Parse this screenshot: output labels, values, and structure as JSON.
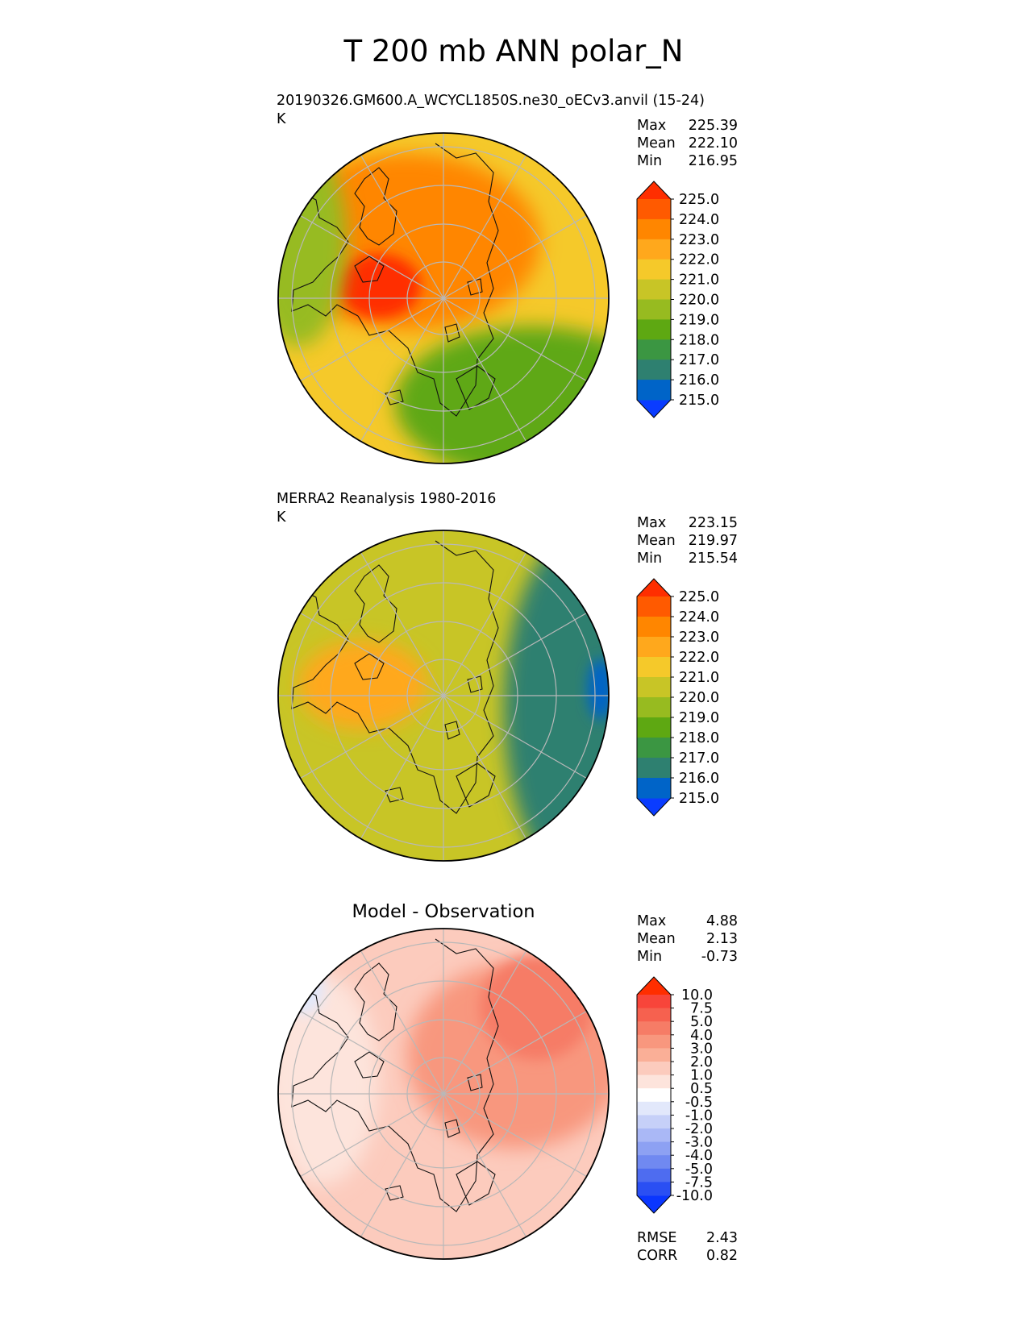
{
  "figure": {
    "title": "T 200 mb ANN polar_N"
  },
  "chart_data": [
    {
      "type": "heatmap",
      "projection": "north-polar-stereographic",
      "title": "20190326.GM600.A_WCYCL1850S.ne30_oECv3.anvil (15-24)",
      "units": "K",
      "stats": [
        {
          "label": "Max",
          "value": "225.39"
        },
        {
          "label": "Mean",
          "value": "222.10"
        },
        {
          "label": "Min",
          "value": "216.95"
        }
      ],
      "colorbar": {
        "levels": [
          "225.0",
          "224.0",
          "223.0",
          "222.0",
          "221.0",
          "220.0",
          "219.0",
          "218.0",
          "217.0",
          "216.0",
          "215.0"
        ],
        "colors": [
          "#ff2e00",
          "#ff5a00",
          "#ff8600",
          "#ffa81c",
          "#f5c92a",
          "#c8c526",
          "#97bb20",
          "#5ea812",
          "#3b9642",
          "#2e8070",
          "#0064c8",
          "#0a3cff"
        ]
      },
      "field_regions": [
        {
          "name": "background",
          "value": 221.5
        },
        {
          "name": "eurasia-warm",
          "value": 223.5
        },
        {
          "name": "greenland-max",
          "value": 225.2
        },
        {
          "name": "pacific-cool",
          "value": 219.5
        },
        {
          "name": "atlantic-cool",
          "value": 218.0
        }
      ]
    },
    {
      "type": "heatmap",
      "projection": "north-polar-stereographic",
      "title": "MERRA2 Reanalysis 1980-2016",
      "units": "K",
      "stats": [
        {
          "label": "Max",
          "value": "223.15"
        },
        {
          "label": "Mean",
          "value": "219.97"
        },
        {
          "label": "Min",
          "value": "215.54"
        }
      ],
      "colorbar": {
        "levels": [
          "225.0",
          "224.0",
          "223.0",
          "222.0",
          "221.0",
          "220.0",
          "219.0",
          "218.0",
          "217.0",
          "216.0",
          "215.0"
        ],
        "colors": [
          "#ff2e00",
          "#ff5a00",
          "#ff8600",
          "#ffa81c",
          "#f5c92a",
          "#c8c526",
          "#97bb20",
          "#5ea812",
          "#3b9642",
          "#2e8070",
          "#0064c8",
          "#0a3cff"
        ]
      },
      "field_regions": [
        {
          "name": "background",
          "value": 220.5
        },
        {
          "name": "greenland-warm",
          "value": 222.5
        },
        {
          "name": "pacific-cold",
          "value": 216.5
        },
        {
          "name": "pacific-min",
          "value": 215.6
        }
      ]
    },
    {
      "type": "heatmap",
      "projection": "north-polar-stereographic",
      "title": "Model - Observation",
      "units": "",
      "stats": [
        {
          "label": "Max",
          "value": "4.88"
        },
        {
          "label": "Mean",
          "value": "2.13"
        },
        {
          "label": "Min",
          "value": "-0.73"
        }
      ],
      "metrics": [
        {
          "label": "RMSE",
          "value": "2.43"
        },
        {
          "label": "CORR",
          "value": "0.82"
        }
      ],
      "colorbar": {
        "levels": [
          "10.0",
          "7.5",
          "5.0",
          "4.0",
          "3.0",
          "2.0",
          "1.0",
          "0.5",
          "-0.5",
          "-1.0",
          "-2.0",
          "-3.0",
          "-4.0",
          "-5.0",
          "-7.5",
          "-10.0"
        ],
        "colors": [
          "#ff2e00",
          "#f8453a",
          "#f6614f",
          "#f67c66",
          "#f8977e",
          "#faaf97",
          "#fccbbd",
          "#fde4dc",
          "#ffffff",
          "#e2e8fb",
          "#c6d0f8",
          "#aab8f6",
          "#8da1f3",
          "#7089f1",
          "#4e6cf0",
          "#2a4ff3",
          "#0a36ff"
        ]
      },
      "field_regions": [
        {
          "name": "background",
          "value": 1.5
        },
        {
          "name": "pacific-warm",
          "value": 3.5
        },
        {
          "name": "pacific-max",
          "value": 4.8
        },
        {
          "name": "americas-mild",
          "value": 0.8
        },
        {
          "name": "edge-negative",
          "value": -0.6
        }
      ]
    }
  ]
}
